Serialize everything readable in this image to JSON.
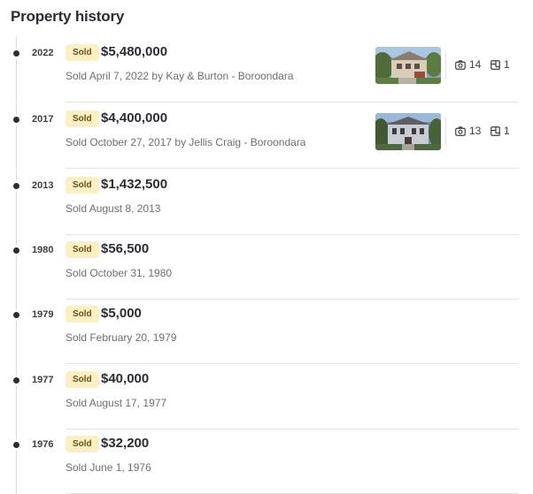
{
  "section": {
    "title": "Property history"
  },
  "sales": [
    {
      "year": "2022",
      "badge": "Sold",
      "price": "$5,480,000",
      "detail": "Sold April 7, 2022 by Kay & Burton - Boroondara",
      "photo_count": "14",
      "floorplan_count": "1"
    },
    {
      "year": "2017",
      "badge": "Sold",
      "price": "$4,400,000",
      "detail": "Sold October 27, 2017 by Jellis Craig - Boroondara",
      "photo_count": "13",
      "floorplan_count": "1"
    },
    {
      "year": "2013",
      "badge": "Sold",
      "price": "$1,432,500",
      "detail": "Sold August 8, 2013"
    },
    {
      "year": "1980",
      "badge": "Sold",
      "price": "$56,500",
      "detail": "Sold October 31, 1980"
    },
    {
      "year": "1979",
      "badge": "Sold",
      "price": "$5,000",
      "detail": "Sold February 20, 1979"
    },
    {
      "year": "1977",
      "badge": "Sold",
      "price": "$40,000",
      "detail": "Sold August 17, 1977"
    },
    {
      "year": "1976",
      "badge": "Sold",
      "price": "$32,200",
      "detail": "Sold June 1, 1976"
    }
  ],
  "icons": {
    "photos": "camera-icon",
    "floorplan": "floorplan-icon",
    "timeline_marker": "timeline-dot"
  },
  "colors": {
    "sold_badge_bg": "#fcefc6",
    "sold_badge_text": "#6b5412",
    "text_primary": "#2b2d33",
    "text_secondary": "#6d6f75",
    "divider": "#e3e4e7"
  }
}
